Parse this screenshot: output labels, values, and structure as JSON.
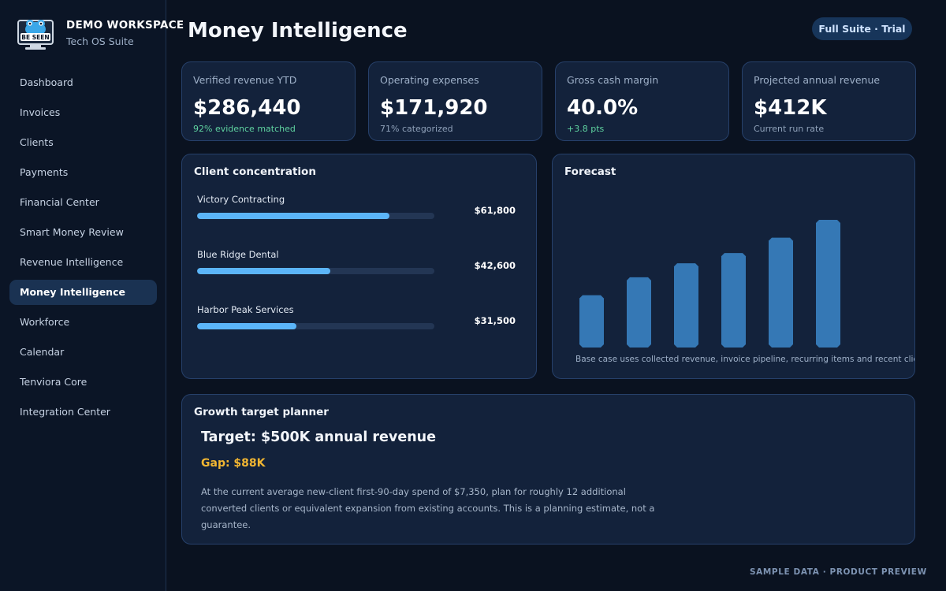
{
  "brand": {
    "name": "DEMO WORKSPACE",
    "subtitle": "Tech OS Suite",
    "logo_text": "BE SEEN",
    "logo_icon": "frog-monitor-logo"
  },
  "sidebar": {
    "items": [
      {
        "label": "Dashboard",
        "active": false
      },
      {
        "label": "Invoices",
        "active": false
      },
      {
        "label": "Clients",
        "active": false
      },
      {
        "label": "Payments",
        "active": false
      },
      {
        "label": "Financial Center",
        "active": false
      },
      {
        "label": "Smart Money Review",
        "active": false
      },
      {
        "label": "Revenue Intelligence",
        "active": false
      },
      {
        "label": "Money Intelligence",
        "active": true
      },
      {
        "label": "Workforce",
        "active": false
      },
      {
        "label": "Calendar",
        "active": false
      },
      {
        "label": "Tenviora Core",
        "active": false
      },
      {
        "label": "Integration Center",
        "active": false
      }
    ]
  },
  "header": {
    "title": "Money Intelligence",
    "plan_badge": "Full Suite · Trial"
  },
  "kpis": [
    {
      "label": "Verified revenue YTD",
      "value": "$286,440",
      "note": "92% evidence matched",
      "note_tone": "good"
    },
    {
      "label": "Operating expenses",
      "value": "$171,920",
      "note": "71% categorized",
      "note_tone": "muted"
    },
    {
      "label": "Gross cash margin",
      "value": "40.0%",
      "note": "+3.8 pts",
      "note_tone": "good"
    },
    {
      "label": "Projected annual revenue",
      "value": "$412K",
      "note": "Current run rate",
      "note_tone": "muted"
    }
  ],
  "client_concentration": {
    "title": "Client concentration",
    "clients": [
      {
        "name": "Victory Contracting",
        "amount": "$61,800",
        "share": 0.81
      },
      {
        "name": "Blue Ridge Dental",
        "amount": "$42,600",
        "share": 0.56
      },
      {
        "name": "Harbor Peak Services",
        "amount": "$31,500",
        "share": 0.42
      }
    ]
  },
  "forecast": {
    "title": "Forecast",
    "note": "Base case uses collected revenue, invoice pipeline, recurring items and recent client-spend trends.",
    "bar_color": "#3578b5",
    "relative_levels": [
      0.41,
      0.55,
      0.66,
      0.74,
      0.86,
      1.0
    ]
  },
  "growth_planner": {
    "title": "Growth target planner",
    "target": "Target: $500K annual revenue",
    "gap": "Gap: $88K",
    "description": "At the current average new-client first-90-day spend of $7,350, plan for roughly 12 additional converted clients or equivalent expansion from existing accounts. This is a planning estimate, not a guarantee."
  },
  "footer": "SAMPLE DATA · PRODUCT PREVIEW",
  "colors": {
    "background": "#0a1220",
    "card": "#13223b",
    "accent_bar": "#5bb5f8",
    "gap_amber": "#f2b632",
    "positive": "#5fd3a0"
  }
}
